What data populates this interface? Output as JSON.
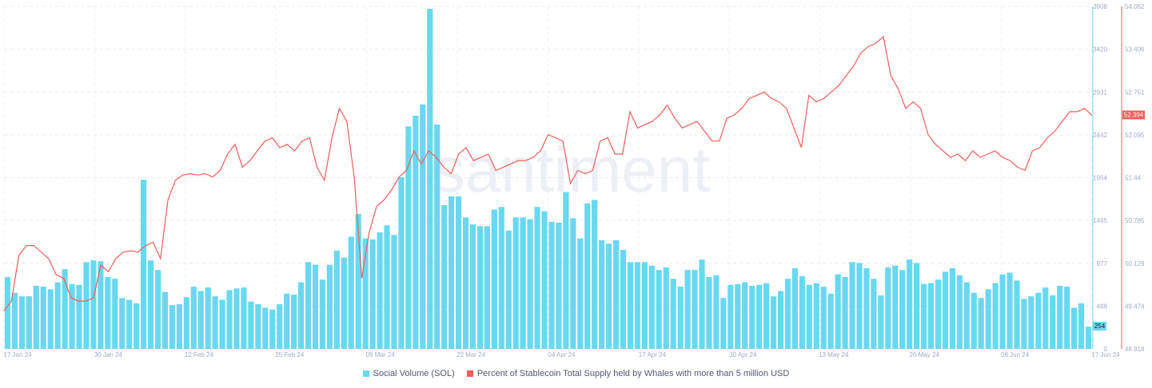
{
  "chart_data": {
    "type": "bar+line",
    "watermark": "santiment",
    "x_ticks": [
      "17 Jan 24",
      "30 Jan 24",
      "12 Feb 24",
      "25 Feb 24",
      "09 Mar 24",
      "22 Mar 24",
      "04 Apr 24",
      "17 Apr 24",
      "30 Apr 24",
      "13 May 24",
      "26 May 24",
      "08 Jun 24",
      "17 Jun 24"
    ],
    "y_left": {
      "ticks": [
        "0",
        "488",
        "977",
        "1465",
        "1954",
        "2442",
        "2931",
        "3420",
        "3908"
      ],
      "range": [
        0,
        3908
      ]
    },
    "y_right": {
      "ticks": [
        "48.818",
        "49.474",
        "50.129",
        "50.785",
        "51.44",
        "52.095",
        "52.751",
        "53.406",
        "54.062"
      ],
      "range": [
        48.818,
        54.062
      ]
    },
    "series": [
      {
        "name": "Social Volume (SOL)",
        "type": "bar",
        "color": "#68d8f1",
        "last_value_label": "254",
        "values": [
          820,
          640,
          600,
          600,
          720,
          710,
          680,
          760,
          910,
          740,
          730,
          990,
          1010,
          1000,
          820,
          800,
          580,
          560,
          520,
          1930,
          1010,
          900,
          650,
          500,
          510,
          590,
          710,
          660,
          700,
          600,
          560,
          670,
          690,
          700,
          540,
          510,
          470,
          450,
          510,
          630,
          620,
          760,
          990,
          960,
          790,
          960,
          1120,
          1040,
          1280,
          1540,
          1260,
          1250,
          1330,
          1410,
          1300,
          1960,
          2540,
          2660,
          2790,
          3880,
          2560,
          1640,
          1740,
          1740,
          1500,
          1420,
          1400,
          1400,
          1590,
          1620,
          1350,
          1500,
          1500,
          1480,
          1620,
          1570,
          1450,
          1440,
          1790,
          1490,
          1260,
          1660,
          1700,
          1240,
          1200,
          1240,
          1130,
          990,
          990,
          990,
          950,
          900,
          930,
          800,
          710,
          900,
          900,
          1020,
          820,
          840,
          580,
          730,
          740,
          760,
          720,
          730,
          750,
          600,
          660,
          800,
          920,
          830,
          730,
          750,
          710,
          630,
          850,
          820,
          990,
          980,
          920,
          800,
          610,
          930,
          950,
          900,
          1020,
          980,
          740,
          750,
          790,
          880,
          920,
          840,
          760,
          640,
          580,
          680,
          750,
          850,
          870,
          780,
          570,
          600,
          640,
          700,
          610,
          720,
          710,
          470,
          520,
          254
        ]
      },
      {
        "name": "Percent of Stablecoin Total Supply held by Whales with more than 5 million USD",
        "type": "line",
        "color": "#ef5e5b",
        "last_value_label": "52.394",
        "values": [
          49.4,
          49.55,
          50.25,
          50.4,
          50.4,
          50.3,
          50.2,
          49.95,
          49.9,
          49.6,
          49.55,
          49.55,
          49.6,
          50.1,
          50,
          50.2,
          50.3,
          50.32,
          50.3,
          50.4,
          50.45,
          50.2,
          51.1,
          51.4,
          51.48,
          51.5,
          51.48,
          51.5,
          51.45,
          51.55,
          51.8,
          51.95,
          51.6,
          51.7,
          51.85,
          52.0,
          52.05,
          51.9,
          51.95,
          51.85,
          52.0,
          52.05,
          51.6,
          51.4,
          52.05,
          52.5,
          52.3,
          51.45,
          49.9,
          50.6,
          51.0,
          51.1,
          51.25,
          51.45,
          51.55,
          51.85,
          51.65,
          51.85,
          51.75,
          51.6,
          51.5,
          51.8,
          51.9,
          51.7,
          51.75,
          51.8,
          51.55,
          51.6,
          51.65,
          51.7,
          51.7,
          51.75,
          51.85,
          52.1,
          52.05,
          52.0,
          51.35,
          51.55,
          51.5,
          51.55,
          52.0,
          52.05,
          51.8,
          51.8,
          52.45,
          52.2,
          52.25,
          52.3,
          52.4,
          52.55,
          52.35,
          52.2,
          52.25,
          52.3,
          52.15,
          52.0,
          52.0,
          52.35,
          52.4,
          52.5,
          52.65,
          52.7,
          52.75,
          52.65,
          52.6,
          52.5,
          52.2,
          51.9,
          52.7,
          52.6,
          52.65,
          52.75,
          52.85,
          53.0,
          53.15,
          53.35,
          53.45,
          53.5,
          53.6,
          53.0,
          52.8,
          52.5,
          52.6,
          52.5,
          52.1,
          51.95,
          51.85,
          51.75,
          51.8,
          51.7,
          51.85,
          51.75,
          51.8,
          51.85,
          51.75,
          51.7,
          51.6,
          51.55,
          51.85,
          51.9,
          52.05,
          52.15,
          52.3,
          52.45,
          52.45,
          52.5,
          52.394
        ]
      }
    ]
  }
}
